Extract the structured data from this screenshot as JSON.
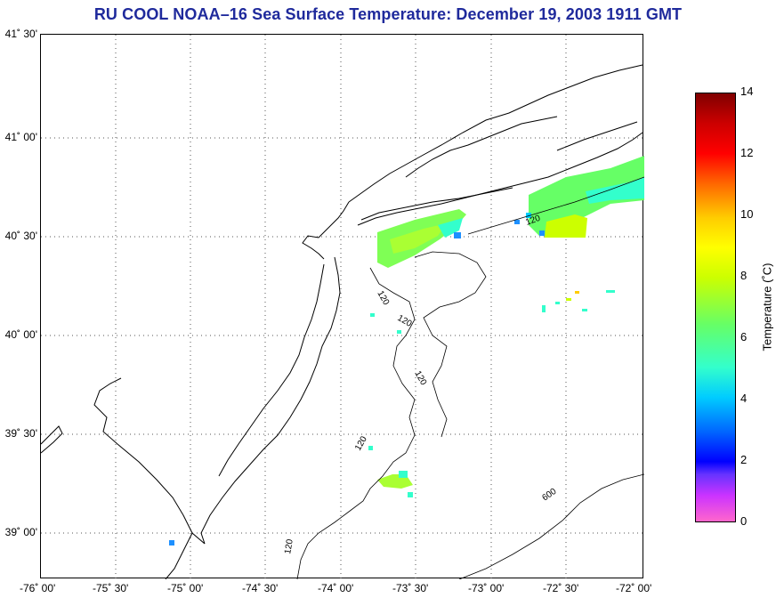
{
  "title": "RU COOL  NOAA–16  Sea Surface Temperature:  December 19, 2003 1911 GMT",
  "lat_labels": [
    "41˚ 30'",
    "41˚ 00'",
    "40˚ 30'",
    "40˚ 00'",
    "39˚ 30'",
    "39˚ 00'"
  ],
  "lon_labels": [
    "-76˚ 00'",
    "-75˚ 30'",
    "-75˚ 00'",
    "-74˚ 30'",
    "-74˚ 00'",
    "-73˚ 30'",
    "-73˚ 00'",
    "-72˚ 30'",
    "-72˚ 00'"
  ],
  "isobath_labels": [
    "120",
    "120",
    "120",
    "120",
    "120",
    "120",
    "600"
  ],
  "colorbar": {
    "label": "Temperature (˚C)",
    "ticks": [
      "0",
      "2",
      "4",
      "6",
      "8",
      "10",
      "12",
      "14"
    ],
    "min": 0,
    "max": 14
  },
  "colors": {
    "title": "#1f2a9c",
    "coast": "#000000",
    "grid": "#555555"
  }
}
